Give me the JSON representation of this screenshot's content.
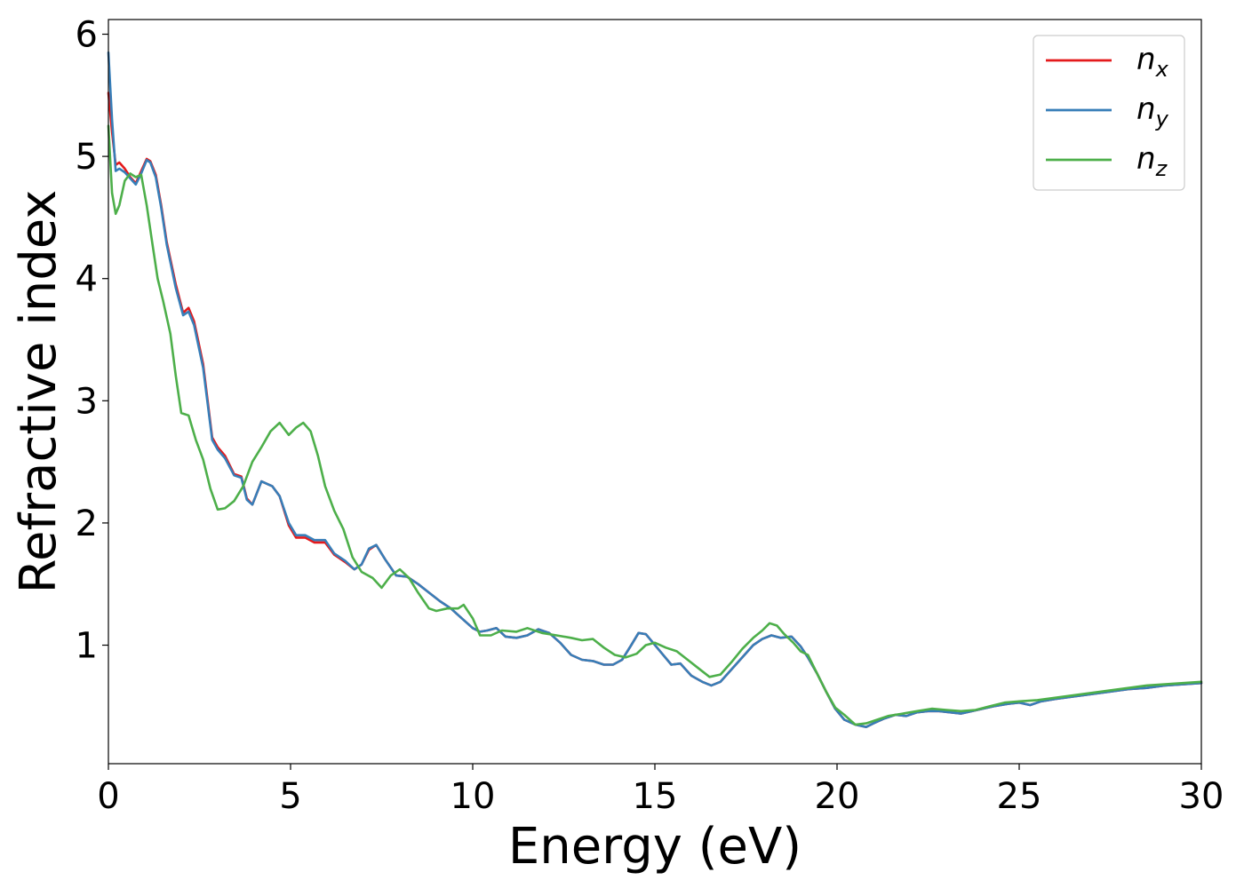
{
  "chart_data": {
    "type": "line",
    "title": "",
    "xlabel": "Energy (eV)",
    "ylabel": "Refractive index",
    "xlim": [
      0,
      30
    ],
    "ylim": [
      0.03,
      6.12
    ],
    "xticks": [
      0,
      5,
      10,
      15,
      20,
      25,
      30
    ],
    "yticks": [
      1,
      2,
      3,
      4,
      5,
      6
    ],
    "grid": false,
    "legend_position": "top-right",
    "series": [
      {
        "name": "n_x",
        "legend_base": "n",
        "legend_sub": "x",
        "color": "#e41a1c",
        "x": [
          0,
          0.1,
          0.2,
          0.3,
          0.45,
          0.6,
          0.75,
          0.9,
          1.05,
          1.15,
          1.3,
          1.45,
          1.6,
          1.85,
          2.05,
          2.2,
          2.35,
          2.6,
          2.85,
          3.0,
          3.2,
          3.45,
          3.65,
          3.8,
          3.95,
          4.2,
          4.5,
          4.7,
          4.95,
          5.15,
          5.4,
          5.65,
          5.95,
          6.2,
          6.5,
          6.75,
          6.95,
          7.15,
          7.35,
          7.6,
          7.9,
          8.2,
          8.5,
          8.8,
          9.1,
          9.4,
          9.7,
          10.0,
          10.2,
          10.4,
          10.65,
          10.9,
          11.2,
          11.5,
          11.8,
          12.1,
          12.4,
          12.7,
          13.0,
          13.3,
          13.6,
          13.85,
          14.1,
          14.35,
          14.55,
          14.75,
          14.95,
          15.2,
          15.45,
          15.7,
          16.0,
          16.3,
          16.55,
          16.8,
          17.1,
          17.4,
          17.7,
          17.95,
          18.2,
          18.45,
          18.75,
          19.0,
          19.2,
          19.45,
          19.7,
          19.95,
          20.2,
          20.5,
          20.8,
          21.0,
          21.3,
          21.6,
          21.9,
          22.2,
          22.5,
          22.8,
          23.1,
          23.4,
          23.7,
          24.0,
          24.3,
          24.7,
          25.0,
          25.3,
          25.6,
          26.0,
          26.5,
          27.0,
          27.5,
          28.0,
          28.5,
          29.0,
          29.5,
          30.0
        ],
        "y": [
          5.52,
          5.2,
          4.93,
          4.95,
          4.9,
          4.83,
          4.78,
          4.88,
          4.98,
          4.96,
          4.85,
          4.6,
          4.3,
          3.95,
          3.72,
          3.76,
          3.65,
          3.3,
          2.7,
          2.62,
          2.55,
          2.4,
          2.38,
          2.2,
          2.15,
          2.34,
          2.3,
          2.22,
          1.98,
          1.88,
          1.88,
          1.84,
          1.84,
          1.74,
          1.68,
          1.62,
          1.66,
          1.78,
          1.82,
          1.7,
          1.57,
          1.56,
          1.5,
          1.43,
          1.36,
          1.3,
          1.22,
          1.14,
          1.11,
          1.12,
          1.14,
          1.07,
          1.06,
          1.08,
          1.13,
          1.1,
          1.02,
          0.92,
          0.88,
          0.87,
          0.84,
          0.84,
          0.88,
          1.0,
          1.1,
          1.09,
          1.02,
          0.93,
          0.84,
          0.85,
          0.75,
          0.7,
          0.67,
          0.7,
          0.8,
          0.9,
          1.0,
          1.05,
          1.08,
          1.06,
          1.07,
          0.99,
          0.9,
          0.77,
          0.62,
          0.48,
          0.39,
          0.35,
          0.33,
          0.36,
          0.4,
          0.43,
          0.42,
          0.45,
          0.46,
          0.46,
          0.45,
          0.44,
          0.46,
          0.48,
          0.5,
          0.52,
          0.53,
          0.51,
          0.54,
          0.56,
          0.58,
          0.6,
          0.62,
          0.64,
          0.65,
          0.67,
          0.68,
          0.69
        ]
      },
      {
        "name": "n_y",
        "legend_base": "n",
        "legend_sub": "y",
        "color": "#377eb8",
        "x": [
          0,
          0.1,
          0.2,
          0.3,
          0.45,
          0.6,
          0.75,
          0.9,
          1.05,
          1.15,
          1.3,
          1.45,
          1.6,
          1.85,
          2.05,
          2.2,
          2.35,
          2.6,
          2.85,
          3.0,
          3.2,
          3.45,
          3.65,
          3.8,
          3.95,
          4.2,
          4.5,
          4.7,
          4.95,
          5.15,
          5.4,
          5.65,
          5.95,
          6.2,
          6.5,
          6.75,
          6.95,
          7.15,
          7.35,
          7.6,
          7.9,
          8.2,
          8.5,
          8.8,
          9.1,
          9.4,
          9.7,
          10.0,
          10.2,
          10.4,
          10.65,
          10.9,
          11.2,
          11.5,
          11.8,
          12.1,
          12.4,
          12.7,
          13.0,
          13.3,
          13.6,
          13.85,
          14.1,
          14.35,
          14.55,
          14.75,
          14.95,
          15.2,
          15.45,
          15.7,
          16.0,
          16.3,
          16.55,
          16.8,
          17.1,
          17.4,
          17.7,
          17.95,
          18.2,
          18.45,
          18.75,
          19.0,
          19.2,
          19.45,
          19.7,
          19.95,
          20.2,
          20.5,
          20.8,
          21.0,
          21.3,
          21.6,
          21.9,
          22.2,
          22.5,
          22.8,
          23.1,
          23.4,
          23.7,
          24.0,
          24.3,
          24.7,
          25.0,
          25.3,
          25.6,
          26.0,
          26.5,
          27.0,
          27.5,
          28.0,
          28.5,
          29.0,
          29.5,
          30.0
        ],
        "y": [
          5.85,
          5.3,
          4.88,
          4.9,
          4.87,
          4.82,
          4.77,
          4.86,
          4.97,
          4.95,
          4.83,
          4.58,
          4.28,
          3.92,
          3.7,
          3.73,
          3.62,
          3.27,
          2.68,
          2.6,
          2.53,
          2.39,
          2.37,
          2.19,
          2.15,
          2.34,
          2.3,
          2.22,
          2.0,
          1.9,
          1.9,
          1.86,
          1.86,
          1.75,
          1.69,
          1.62,
          1.66,
          1.79,
          1.82,
          1.7,
          1.57,
          1.56,
          1.5,
          1.43,
          1.36,
          1.3,
          1.22,
          1.14,
          1.11,
          1.12,
          1.14,
          1.07,
          1.06,
          1.08,
          1.13,
          1.1,
          1.02,
          0.92,
          0.88,
          0.87,
          0.84,
          0.84,
          0.88,
          1.0,
          1.1,
          1.09,
          1.02,
          0.93,
          0.84,
          0.85,
          0.75,
          0.7,
          0.67,
          0.7,
          0.8,
          0.9,
          1.0,
          1.05,
          1.08,
          1.06,
          1.07,
          0.99,
          0.9,
          0.77,
          0.62,
          0.48,
          0.39,
          0.35,
          0.33,
          0.36,
          0.4,
          0.43,
          0.42,
          0.45,
          0.46,
          0.46,
          0.45,
          0.44,
          0.46,
          0.48,
          0.5,
          0.52,
          0.53,
          0.51,
          0.54,
          0.56,
          0.58,
          0.6,
          0.62,
          0.64,
          0.65,
          0.67,
          0.68,
          0.69
        ]
      },
      {
        "name": "n_z",
        "legend_base": "n",
        "legend_sub": "z",
        "color": "#4daf4a",
        "x": [
          0,
          0.1,
          0.2,
          0.3,
          0.45,
          0.6,
          0.75,
          0.9,
          1.05,
          1.2,
          1.35,
          1.5,
          1.7,
          1.85,
          2.0,
          2.2,
          2.4,
          2.6,
          2.8,
          3.0,
          3.2,
          3.45,
          3.7,
          3.95,
          4.2,
          4.45,
          4.7,
          4.95,
          5.15,
          5.35,
          5.55,
          5.75,
          5.95,
          6.2,
          6.45,
          6.7,
          6.95,
          7.25,
          7.5,
          7.75,
          8.0,
          8.25,
          8.5,
          8.8,
          9.0,
          9.3,
          9.6,
          9.75,
          10.0,
          10.2,
          10.5,
          10.8,
          11.2,
          11.5,
          11.9,
          12.3,
          12.7,
          13.0,
          13.3,
          13.6,
          13.9,
          14.2,
          14.5,
          14.75,
          15.0,
          15.3,
          15.6,
          15.9,
          16.2,
          16.5,
          16.8,
          17.1,
          17.4,
          17.7,
          17.95,
          18.15,
          18.35,
          18.55,
          18.8,
          19.0,
          19.2,
          19.45,
          19.7,
          19.95,
          20.2,
          20.5,
          20.8,
          21.1,
          21.4,
          21.8,
          22.2,
          22.6,
          23.0,
          23.4,
          23.8,
          24.2,
          24.6,
          25.0,
          25.5,
          26.0,
          26.5,
          27.0,
          27.5,
          28.0,
          28.5,
          29.0,
          29.5,
          30.0
        ],
        "y": [
          5.25,
          4.7,
          4.53,
          4.6,
          4.8,
          4.86,
          4.83,
          4.85,
          4.6,
          4.3,
          4.0,
          3.82,
          3.55,
          3.2,
          2.9,
          2.88,
          2.68,
          2.52,
          2.28,
          2.11,
          2.12,
          2.18,
          2.3,
          2.5,
          2.62,
          2.75,
          2.82,
          2.72,
          2.78,
          2.82,
          2.75,
          2.55,
          2.3,
          2.1,
          1.95,
          1.72,
          1.6,
          1.55,
          1.47,
          1.57,
          1.62,
          1.55,
          1.43,
          1.3,
          1.28,
          1.3,
          1.3,
          1.33,
          1.22,
          1.08,
          1.08,
          1.12,
          1.11,
          1.14,
          1.1,
          1.08,
          1.06,
          1.04,
          1.05,
          0.98,
          0.92,
          0.9,
          0.93,
          1.0,
          1.02,
          0.98,
          0.95,
          0.88,
          0.81,
          0.74,
          0.76,
          0.86,
          0.97,
          1.06,
          1.12,
          1.18,
          1.16,
          1.09,
          1.02,
          0.95,
          0.92,
          0.77,
          0.62,
          0.49,
          0.43,
          0.35,
          0.36,
          0.39,
          0.42,
          0.44,
          0.46,
          0.48,
          0.47,
          0.46,
          0.47,
          0.5,
          0.53,
          0.54,
          0.55,
          0.57,
          0.59,
          0.61,
          0.63,
          0.65,
          0.67,
          0.68,
          0.69,
          0.7
        ]
      }
    ]
  }
}
